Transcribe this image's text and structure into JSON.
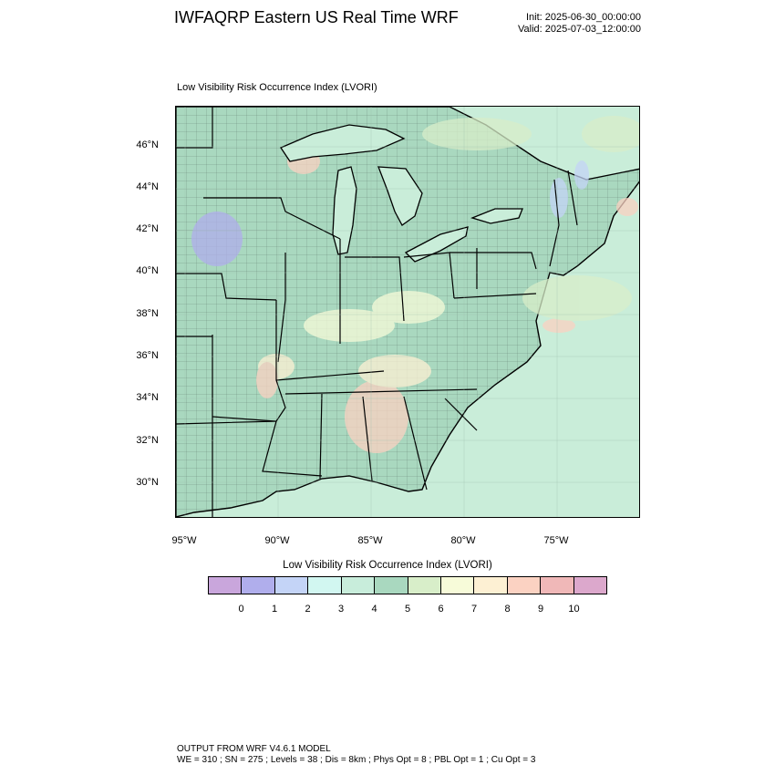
{
  "header": {
    "title": "IWFAQRP Eastern US Real Time WRF",
    "init": "Init: 2025-06-30_00:00:00",
    "valid": "Valid: 2025-07-03_12:00:00"
  },
  "map": {
    "subtitle": "Low Visibility Risk Occurrence Index   (LVORI)",
    "lat_labels": [
      "46°N",
      "44°N",
      "42°N",
      "40°N",
      "38°N",
      "36°N",
      "34°N",
      "32°N",
      "30°N"
    ],
    "lon_labels": [
      "95°W",
      "90°W",
      "85°W",
      "80°W",
      "75°W"
    ],
    "ocean_color": "#c9edd9",
    "land_base_color": "#a9d8bf"
  },
  "legend": {
    "title": "Low Visibility Risk Occurrence Index  (LVORI)",
    "labels": [
      "0",
      "1",
      "2",
      "3",
      "4",
      "5",
      "6",
      "7",
      "8",
      "9",
      "10"
    ],
    "colors": [
      "#c9a6dc",
      "#b0aeec",
      "#c4d4f7",
      "#d2f7f1",
      "#c8eddb",
      "#a9d8bf",
      "#d8eec9",
      "#f7fbd9",
      "#fdf0d3",
      "#fbd2c2",
      "#f0b8b8",
      "#dca8cc"
    ]
  },
  "footer": {
    "line1": "OUTPUT FROM WRF V4.6.1 MODEL",
    "line2": "WE = 310 ; SN = 275 ; Levels = 38 ; Dis = 8km ; Phys Opt = 8 ; PBL Opt = 1 ; Cu Opt = 3"
  }
}
